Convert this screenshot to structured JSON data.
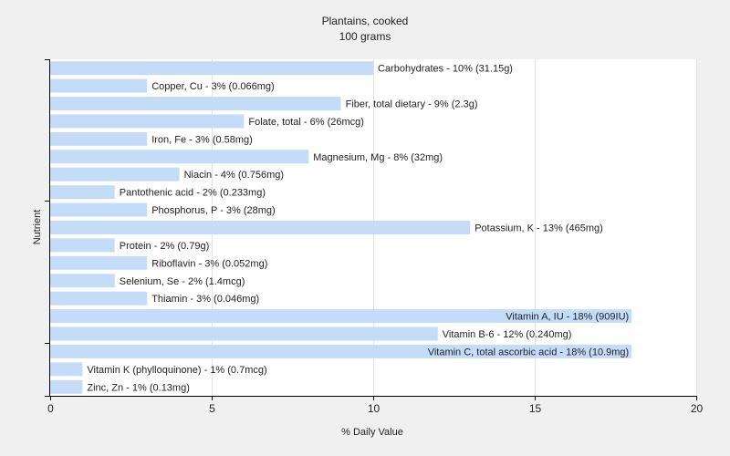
{
  "chart_data": {
    "type": "bar",
    "orientation": "horizontal",
    "title": "Plantains, cooked",
    "subtitle": "100 grams",
    "xlabel": "% Daily Value",
    "ylabel": "Nutrient",
    "xlim": [
      0,
      20
    ],
    "xticks": [
      "0",
      "5",
      "10",
      "15",
      "20"
    ],
    "grid": "vertical",
    "bar_color": "#c5dcf8",
    "background_color": "#f0f0f0",
    "plot_background_color": "#ffffff",
    "categories": [
      "Carbohydrates",
      "Copper, Cu",
      "Fiber, total dietary",
      "Folate, total",
      "Iron, Fe",
      "Magnesium, Mg",
      "Niacin",
      "Pantothenic acid",
      "Phosphorus, P",
      "Potassium, K",
      "Protein",
      "Riboflavin",
      "Selenium, Se",
      "Thiamin",
      "Vitamin A, IU",
      "Vitamin B-6",
      "Vitamin C, total ascorbic acid",
      "Vitamin K (phylloquinone)",
      "Zinc, Zn"
    ],
    "values": [
      10,
      3,
      9,
      6,
      3,
      8,
      4,
      2,
      3,
      13,
      2,
      3,
      2,
      3,
      18,
      12,
      18,
      1,
      1
    ],
    "labels": [
      "Carbohydrates - 10% (31.15g)",
      "Copper, Cu - 3% (0.066mg)",
      "Fiber, total dietary - 9% (2.3g)",
      "Folate, total - 6% (26mcg)",
      "Iron, Fe - 3% (0.58mg)",
      "Magnesium, Mg - 8% (32mg)",
      "Niacin - 4% (0.756mg)",
      "Pantothenic acid - 2% (0.233mg)",
      "Phosphorus, P - 3% (28mg)",
      "Potassium, K - 13% (465mg)",
      "Protein - 2% (0.79g)",
      "Riboflavin - 3% (0.052mg)",
      "Selenium, Se - 2% (1.4mcg)",
      "Thiamin - 3% (0.046mg)",
      "Vitamin A, IU - 18% (909IU)",
      "Vitamin B-6 - 12% (0.240mg)",
      "Vitamin C, total ascorbic acid - 18% (10.9mg)",
      "Vitamin K (phylloquinone) - 1% (0.7mcg)",
      "Zinc, Zn - 1% (0.13mg)"
    ]
  }
}
